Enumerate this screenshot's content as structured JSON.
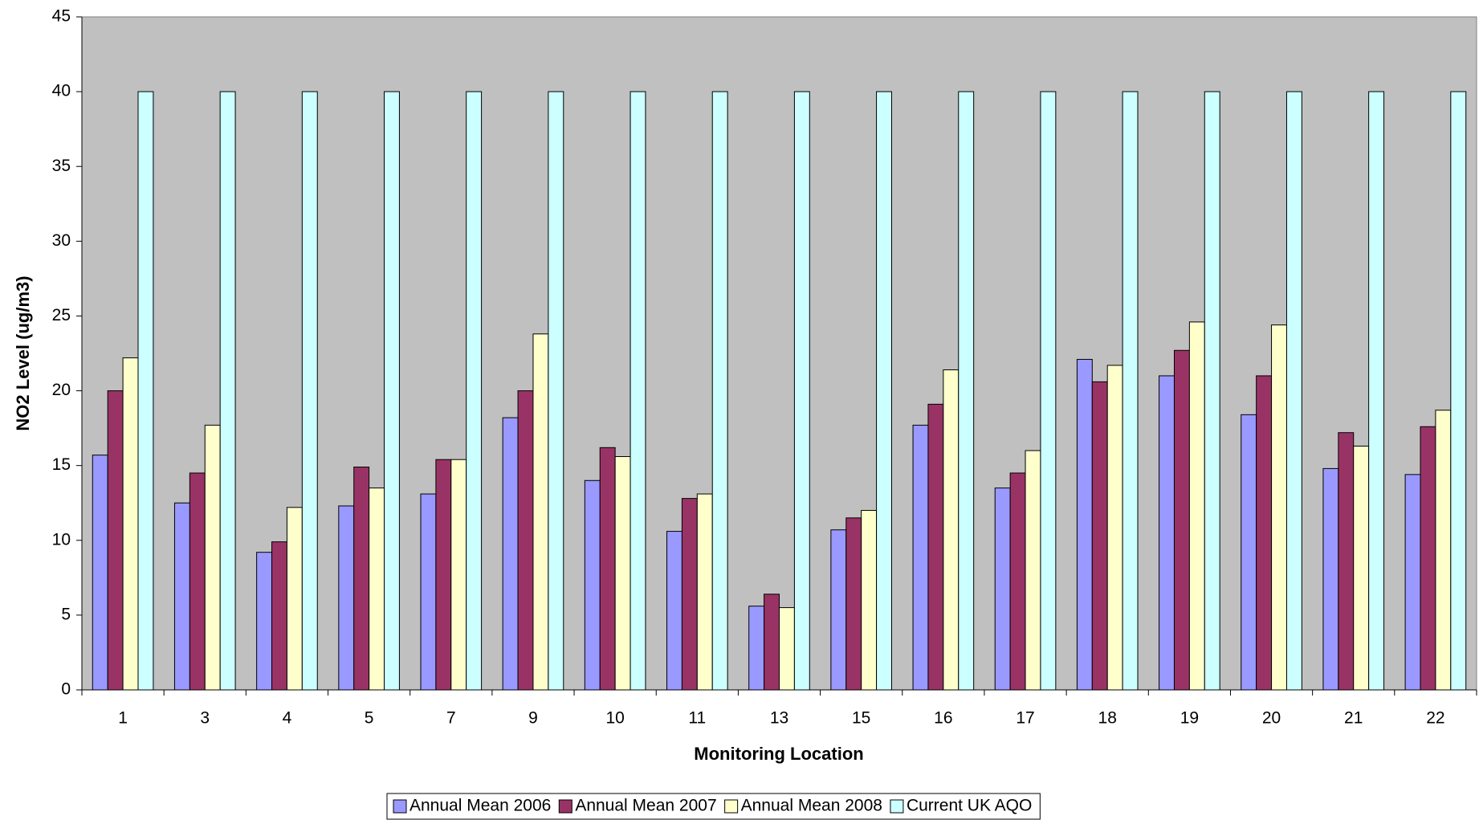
{
  "chart_data": {
    "type": "bar",
    "x_label": "Monitoring Location",
    "y_label": "NO2 Level (ug/m3)",
    "categories": [
      "1",
      "3",
      "4",
      "5",
      "7",
      "9",
      "10",
      "11",
      "13",
      "15",
      "16",
      "17",
      "18",
      "19",
      "20",
      "21",
      "22"
    ],
    "series": [
      {
        "name": "Annual Mean 2006",
        "color": "#9999ff",
        "values": [
          15.7,
          12.5,
          9.2,
          12.3,
          13.1,
          18.2,
          14,
          10.6,
          5.6,
          10.7,
          17.7,
          13.5,
          22.1,
          21,
          18.4,
          14.8,
          14.4
        ]
      },
      {
        "name": "Annual Mean 2007",
        "color": "#993366",
        "values": [
          20,
          14.5,
          9.9,
          14.9,
          15.4,
          20,
          16.2,
          12.8,
          6.4,
          11.5,
          19.1,
          14.5,
          20.6,
          22.7,
          21,
          17.2,
          17.6
        ]
      },
      {
        "name": "Annual Mean 2008",
        "color": "#ffffcc",
        "values": [
          22.2,
          17.7,
          12.2,
          13.5,
          15.4,
          23.8,
          15.6,
          13.1,
          5.5,
          12,
          21.4,
          16,
          21.7,
          24.6,
          24.4,
          16.3,
          18.7
        ]
      },
      {
        "name": "Current UK AQO",
        "color": "#ccffff",
        "values": [
          40,
          40,
          40,
          40,
          40,
          40,
          40,
          40,
          40,
          40,
          40,
          40,
          40,
          40,
          40,
          40,
          40
        ]
      }
    ],
    "ylim": [
      0,
      45
    ],
    "yticks": [
      0,
      5,
      10,
      15,
      20,
      25,
      30,
      35,
      40,
      45
    ],
    "plot_background": "#c0c0c0",
    "legend": "bottom"
  }
}
